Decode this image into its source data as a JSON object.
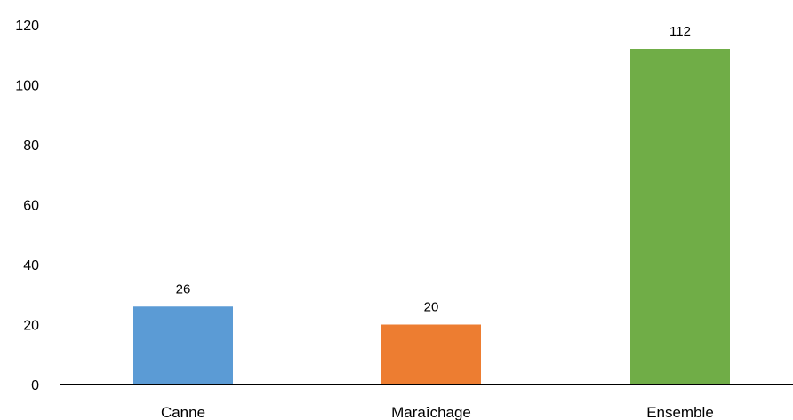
{
  "chart_data": {
    "type": "bar",
    "title": "",
    "xlabel": "",
    "ylabel": "",
    "categories": [
      "Canne",
      "Maraîchage",
      "Ensemble"
    ],
    "values": [
      26,
      20,
      112
    ],
    "data_labels": [
      "26",
      "20",
      "112"
    ],
    "colors": [
      "#5b9bd5",
      "#ed7d31",
      "#70ad47"
    ],
    "ylim": [
      0,
      120
    ],
    "y_ticks": [
      0,
      20,
      40,
      60,
      80,
      100,
      120
    ],
    "y_tick_labels": [
      "0",
      "20",
      "40",
      "60",
      "80",
      "100",
      "120"
    ],
    "grid": false,
    "legend": "none"
  }
}
